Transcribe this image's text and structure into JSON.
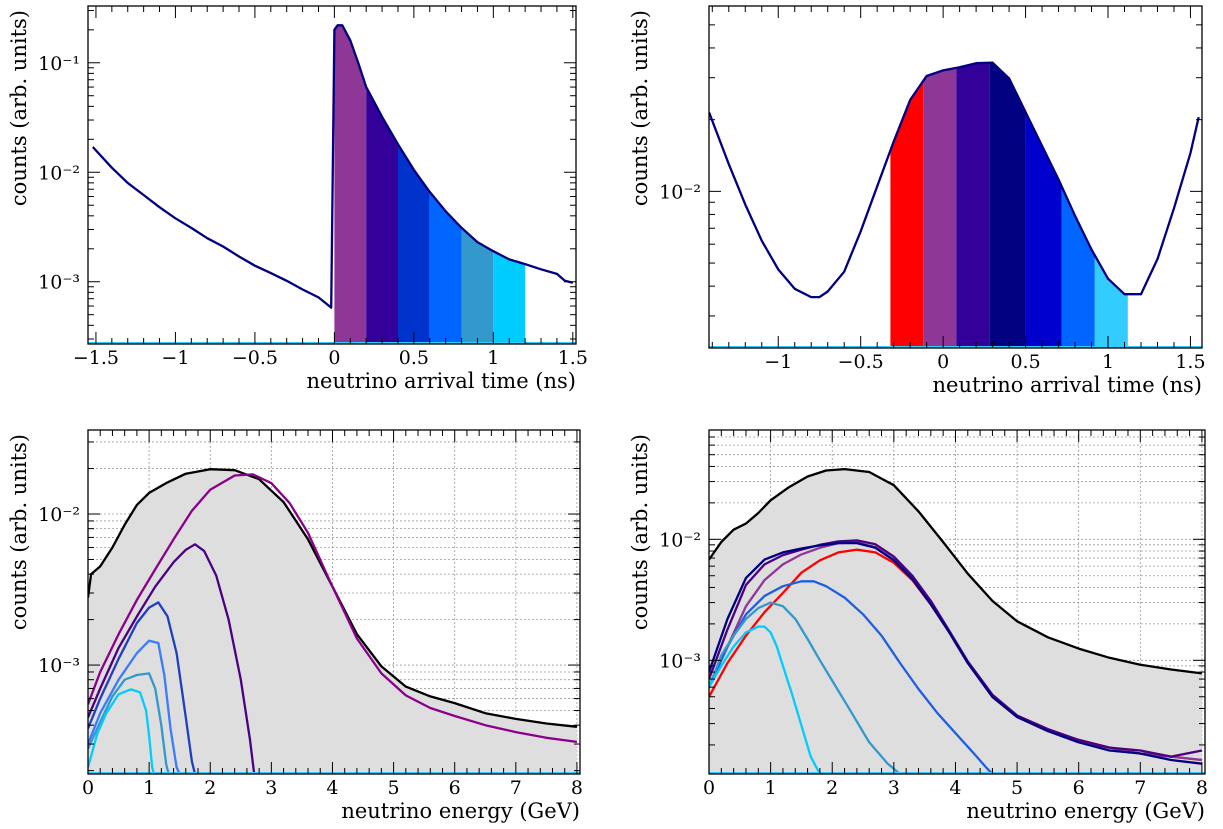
{
  "chart_data": [
    {
      "id": "top-left",
      "type": "area",
      "xlabel": "neutrino arrival time (ns)",
      "ylabel": "counts (arb. units)",
      "xlim": [
        -1.55,
        1.52
      ],
      "ylim": [
        0.00027,
        0.33
      ],
      "log_y": true,
      "grid": false,
      "x_ticks": [
        -1.5,
        -1,
        -0.5,
        0,
        0.5,
        1,
        1.5
      ],
      "x_tick_labels": [
        "−1.5",
        "−1",
        "−0.5",
        "0",
        "0.5",
        "1",
        "1.5"
      ],
      "y_ticks": [
        0.001,
        0.01,
        0.1
      ],
      "y_tick_labels": [
        "10⁻³",
        "10⁻²",
        "10⁻¹"
      ],
      "bins": [
        {
          "x0": 0.0,
          "x1": 0.2,
          "color": "#8e3797"
        },
        {
          "x0": 0.2,
          "x1": 0.4,
          "color": "#330099"
        },
        {
          "x0": 0.4,
          "x1": 0.6,
          "color": "#0033cc"
        },
        {
          "x0": 0.6,
          "x1": 0.8,
          "color": "#0066ff"
        },
        {
          "x0": 0.8,
          "x1": 1.0,
          "color": "#3399cc"
        },
        {
          "x0": 1.0,
          "x1": 1.2,
          "color": "#00ccff"
        }
      ],
      "series": [
        {
          "color": "#000080",
          "x": [
            -1.52,
            -1.4,
            -1.3,
            -1.2,
            -1.1,
            -1.0,
            -0.9,
            -0.8,
            -0.7,
            -0.6,
            -0.5,
            -0.4,
            -0.3,
            -0.2,
            -0.1,
            -0.02,
            0.0,
            0.02,
            0.05,
            0.1,
            0.15,
            0.2,
            0.3,
            0.4,
            0.5,
            0.6,
            0.7,
            0.8,
            0.9,
            1.0,
            1.1,
            1.2,
            1.3,
            1.4,
            1.45,
            1.5
          ],
          "y": [
            0.017,
            0.011,
            0.008,
            0.0062,
            0.0048,
            0.0038,
            0.0031,
            0.0025,
            0.0021,
            0.0017,
            0.0014,
            0.0012,
            0.00102,
            0.00085,
            0.00072,
            0.00058,
            0.2,
            0.22,
            0.22,
            0.16,
            0.1,
            0.06,
            0.032,
            0.018,
            0.0105,
            0.0066,
            0.0044,
            0.0031,
            0.0023,
            0.0019,
            0.0016,
            0.00145,
            0.0013,
            0.00118,
            0.00102,
            0.00098
          ]
        }
      ]
    },
    {
      "id": "top-right",
      "type": "area",
      "xlabel": "neutrino arrival time (ns)",
      "ylabel": "counts (arb. units)",
      "xlim": [
        -1.42,
        1.57
      ],
      "ylim": [
        0.0022,
        0.06
      ],
      "log_y": true,
      "grid": false,
      "x_ticks": [
        -1,
        -0.5,
        0,
        0.5,
        1,
        1.5
      ],
      "x_tick_labels": [
        "−1",
        "−0.5",
        "0",
        "0.5",
        "1",
        "1.5"
      ],
      "y_ticks": [
        0.01
      ],
      "y_tick_labels": [
        "10⁻²"
      ],
      "bins": [
        {
          "x0": -0.32,
          "x1": -0.12,
          "color": "#ff0000"
        },
        {
          "x0": -0.12,
          "x1": 0.08,
          "color": "#8e3797"
        },
        {
          "x0": 0.08,
          "x1": 0.28,
          "color": "#330099"
        },
        {
          "x0": 0.28,
          "x1": 0.5,
          "color": "#000080"
        },
        {
          "x0": 0.5,
          "x1": 0.72,
          "color": "#0000cc"
        },
        {
          "x0": 0.72,
          "x1": 0.92,
          "color": "#0066ff"
        },
        {
          "x0": 0.92,
          "x1": 1.12,
          "color": "#33ccff"
        }
      ],
      "series": [
        {
          "color": "#000080",
          "x": [
            -1.42,
            -1.3,
            -1.2,
            -1.1,
            -1.0,
            -0.9,
            -0.8,
            -0.75,
            -0.7,
            -0.6,
            -0.5,
            -0.4,
            -0.3,
            -0.2,
            -0.1,
            0.0,
            0.1,
            0.2,
            0.3,
            0.4,
            0.5,
            0.6,
            0.7,
            0.8,
            0.9,
            1.0,
            1.1,
            1.2,
            1.3,
            1.4,
            1.5,
            1.55
          ],
          "y": [
            0.0215,
            0.013,
            0.0088,
            0.0062,
            0.0047,
            0.0039,
            0.0036,
            0.0036,
            0.0038,
            0.0046,
            0.0068,
            0.0105,
            0.0162,
            0.0242,
            0.0305,
            0.0322,
            0.0332,
            0.0345,
            0.0347,
            0.0298,
            0.0215,
            0.0155,
            0.0112,
            0.0079,
            0.0057,
            0.0043,
            0.0037,
            0.0037,
            0.0052,
            0.0085,
            0.0145,
            0.0205
          ]
        }
      ]
    },
    {
      "id": "bottom-left",
      "type": "line",
      "xlabel": "neutrino energy (GeV)",
      "ylabel": "counts (arb. units)",
      "xlim": [
        0,
        8.05
      ],
      "ylim": [
        0.00019,
        0.036
      ],
      "log_y": true,
      "grid": true,
      "filled_total": true,
      "x_ticks": [
        0,
        1,
        2,
        3,
        4,
        5,
        6,
        7,
        8
      ],
      "x_tick_labels": [
        "0",
        "1",
        "2",
        "3",
        "4",
        "5",
        "6",
        "7",
        "8"
      ],
      "y_ticks": [
        0.001,
        0.01
      ],
      "y_tick_labels": [
        "10⁻³",
        "10⁻²"
      ],
      "series": [
        {
          "color": "#000000",
          "x": [
            0,
            0.05,
            0.2,
            0.4,
            0.6,
            0.8,
            1.0,
            1.3,
            1.6,
            2.0,
            2.4,
            2.8,
            3.2,
            3.6,
            4.0,
            4.4,
            4.8,
            5.2,
            5.6,
            6.0,
            6.5,
            7.0,
            7.5,
            8.0
          ],
          "y": [
            0.0028,
            0.004,
            0.0045,
            0.006,
            0.0085,
            0.0115,
            0.0138,
            0.0162,
            0.0185,
            0.0198,
            0.0195,
            0.017,
            0.012,
            0.0068,
            0.0033,
            0.0016,
            0.00098,
            0.00072,
            0.00062,
            0.00056,
            0.00048,
            0.00044,
            0.00041,
            0.00039
          ]
        },
        {
          "color": "#8b008b",
          "x": [
            0,
            0.2,
            0.5,
            0.8,
            1.1,
            1.4,
            1.7,
            2.0,
            2.4,
            2.7,
            3.0,
            3.3,
            3.6,
            4.0,
            4.4,
            4.8,
            5.2,
            5.6,
            6.0,
            6.5,
            7.0,
            7.5,
            8.0
          ],
          "y": [
            0.00055,
            0.0009,
            0.0016,
            0.0027,
            0.0043,
            0.0068,
            0.0105,
            0.0145,
            0.018,
            0.0183,
            0.016,
            0.0118,
            0.0075,
            0.0033,
            0.0015,
            0.00088,
            0.00063,
            0.00052,
            0.00046,
            0.0004,
            0.00036,
            0.00033,
            0.00031
          ]
        },
        {
          "color": "#4b0082",
          "x": [
            0,
            0.2,
            0.5,
            0.8,
            1.1,
            1.4,
            1.6,
            1.75,
            1.9,
            2.1,
            2.3,
            2.5,
            2.65,
            2.72
          ],
          "y": [
            0.00045,
            0.0007,
            0.0013,
            0.0021,
            0.0033,
            0.0048,
            0.0058,
            0.0063,
            0.0057,
            0.0039,
            0.002,
            0.0008,
            0.00032,
            0.00019
          ]
        },
        {
          "color": "#1f3fbf",
          "x": [
            0,
            0.2,
            0.5,
            0.8,
            1.0,
            1.15,
            1.3,
            1.45,
            1.6,
            1.7,
            1.75
          ],
          "y": [
            0.00038,
            0.0006,
            0.0011,
            0.0019,
            0.0024,
            0.0026,
            0.0021,
            0.0012,
            0.00045,
            0.00023,
            0.00019
          ]
        },
        {
          "color": "#3a7bff",
          "x": [
            0,
            0.2,
            0.5,
            0.8,
            1.0,
            1.15,
            1.25,
            1.35,
            1.45,
            1.5
          ],
          "y": [
            0.0003,
            0.00048,
            0.0008,
            0.0012,
            0.00145,
            0.0014,
            0.00085,
            0.00038,
            0.00021,
            0.00019
          ]
        },
        {
          "color": "#3399cc",
          "x": [
            0,
            0.2,
            0.4,
            0.6,
            0.8,
            1.0,
            1.1,
            1.2,
            1.28,
            1.32
          ],
          "y": [
            0.00028,
            0.00042,
            0.00062,
            0.0008,
            0.00086,
            0.00088,
            0.0007,
            0.0004,
            0.00022,
            0.00019
          ]
        },
        {
          "color": "#00ccff",
          "x": [
            0,
            0.15,
            0.3,
            0.5,
            0.7,
            0.85,
            0.95,
            1.0,
            1.05,
            1.08
          ],
          "y": [
            0.00021,
            0.00035,
            0.00048,
            0.00064,
            0.00069,
            0.00066,
            0.0005,
            0.00034,
            0.00021,
            0.00019
          ]
        }
      ]
    },
    {
      "id": "bottom-right",
      "type": "line",
      "xlabel": "neutrino energy (GeV)",
      "ylabel": "counts (arb. units)",
      "xlim": [
        0,
        8.05
      ],
      "ylim": [
        0.000115,
        0.08
      ],
      "log_y": true,
      "grid": true,
      "filled_total": true,
      "x_ticks": [
        0,
        1,
        2,
        3,
        4,
        5,
        6,
        7,
        8
      ],
      "x_tick_labels": [
        "0",
        "1",
        "2",
        "3",
        "4",
        "5",
        "6",
        "7",
        "8"
      ],
      "y_ticks": [
        0.001,
        0.01
      ],
      "y_tick_labels": [
        "10⁻³",
        "10⁻²"
      ],
      "series": [
        {
          "color": "#000000",
          "x": [
            0,
            0.2,
            0.4,
            0.6,
            0.8,
            1.0,
            1.3,
            1.6,
            1.9,
            2.2,
            2.6,
            3.0,
            3.4,
            3.8,
            4.2,
            4.6,
            5.0,
            5.5,
            6.0,
            6.5,
            7.0,
            7.5,
            8.0
          ],
          "y": [
            0.0068,
            0.0095,
            0.012,
            0.0135,
            0.0165,
            0.021,
            0.027,
            0.033,
            0.037,
            0.038,
            0.036,
            0.028,
            0.017,
            0.0095,
            0.0052,
            0.0031,
            0.0021,
            0.00155,
            0.00125,
            0.00105,
            0.00092,
            0.00084,
            0.00078
          ]
        },
        {
          "color": "#ff0000",
          "x": [
            0,
            0.3,
            0.6,
            0.9,
            1.2,
            1.5,
            1.8,
            2.1,
            2.4,
            2.7,
            3.0,
            3.3,
            3.6,
            3.9,
            4.2,
            4.6,
            5.0,
            5.5,
            6.0,
            6.5,
            7.0,
            7.5,
            8.0
          ],
          "y": [
            0.0005,
            0.00095,
            0.0016,
            0.0025,
            0.0036,
            0.0053,
            0.0067,
            0.0078,
            0.0082,
            0.0078,
            0.0064,
            0.0046,
            0.0029,
            0.0017,
            0.00095,
            0.0005,
            0.00034,
            0.00026,
            0.00022,
            0.00019,
            0.00017,
            0.00016,
            0.00015
          ]
        },
        {
          "color": "#8e3797",
          "x": [
            0,
            0.3,
            0.6,
            0.9,
            1.2,
            1.5,
            1.8,
            2.1,
            2.4,
            2.7,
            3.0,
            3.3,
            3.6,
            3.9,
            4.2,
            4.6,
            5.0,
            5.5,
            6.0,
            6.5,
            7.0,
            7.5,
            8.0
          ],
          "y": [
            0.0006,
            0.0013,
            0.0028,
            0.0046,
            0.0062,
            0.0075,
            0.0085,
            0.0093,
            0.0094,
            0.0086,
            0.0068,
            0.0048,
            0.003,
            0.0017,
            0.00095,
            0.0005,
            0.00034,
            0.00026,
            0.00021,
            0.00019,
            0.00017,
            0.00016,
            0.00015
          ]
        },
        {
          "color": "#4b0082",
          "x": [
            0,
            0.3,
            0.6,
            0.9,
            1.2,
            1.5,
            1.8,
            2.1,
            2.4,
            2.7,
            3.0,
            3.3,
            3.6,
            3.9,
            4.2,
            4.6,
            5.0,
            5.5,
            6.0,
            6.5,
            7.0,
            7.5,
            8.0
          ],
          "y": [
            0.0007,
            0.0018,
            0.0042,
            0.0062,
            0.0074,
            0.0082,
            0.009,
            0.0096,
            0.0098,
            0.0091,
            0.0072,
            0.005,
            0.0031,
            0.00175,
            0.00098,
            0.00052,
            0.00035,
            0.00027,
            0.00022,
            0.00019,
            0.00018,
            0.00016,
            0.00018
          ]
        },
        {
          "color": "#000080",
          "x": [
            0,
            0.3,
            0.6,
            0.9,
            1.2,
            1.5,
            1.8,
            2.1,
            2.4,
            2.7,
            3.0,
            3.3,
            3.6,
            3.9,
            4.2,
            4.6,
            5.0,
            5.5,
            6.0,
            6.5,
            7.0,
            7.5,
            8.0
          ],
          "y": [
            0.0008,
            0.0022,
            0.0048,
            0.0068,
            0.0078,
            0.0084,
            0.0089,
            0.0093,
            0.0093,
            0.0085,
            0.0067,
            0.0047,
            0.0029,
            0.0017,
            0.00095,
            0.0005,
            0.00034,
            0.00026,
            0.00021,
            0.00018,
            0.00017,
            0.00015,
            0.00014
          ]
        },
        {
          "color": "#1f5fdf",
          "x": [
            0,
            0.3,
            0.6,
            0.9,
            1.2,
            1.5,
            1.7,
            1.9,
            2.2,
            2.5,
            2.8,
            3.1,
            3.4,
            3.7,
            4.0,
            4.3,
            4.5,
            4.6
          ],
          "y": [
            0.0006,
            0.0013,
            0.0024,
            0.0034,
            0.0041,
            0.0045,
            0.0045,
            0.0041,
            0.0033,
            0.0024,
            0.0016,
            0.00095,
            0.00058,
            0.00037,
            0.00025,
            0.00017,
            0.00013,
            0.000115
          ]
        },
        {
          "color": "#3399cc",
          "x": [
            0,
            0.2,
            0.4,
            0.6,
            0.8,
            1.0,
            1.2,
            1.4,
            1.6,
            1.8,
            2.0,
            2.3,
            2.6,
            2.9,
            3.1
          ],
          "y": [
            0.0006,
            0.0011,
            0.0016,
            0.0022,
            0.0027,
            0.003,
            0.0028,
            0.0022,
            0.0015,
            0.001,
            0.00068,
            0.00038,
            0.00021,
            0.00014,
            0.000115
          ]
        },
        {
          "color": "#00ccff",
          "x": [
            0,
            0.2,
            0.4,
            0.6,
            0.8,
            0.9,
            1.0,
            1.1,
            1.2,
            1.35,
            1.5,
            1.65,
            1.8
          ],
          "y": [
            0.0006,
            0.0009,
            0.0013,
            0.0017,
            0.0019,
            0.0019,
            0.0017,
            0.0013,
            0.0009,
            0.00052,
            0.00029,
            0.00016,
            0.000115
          ]
        }
      ]
    }
  ]
}
